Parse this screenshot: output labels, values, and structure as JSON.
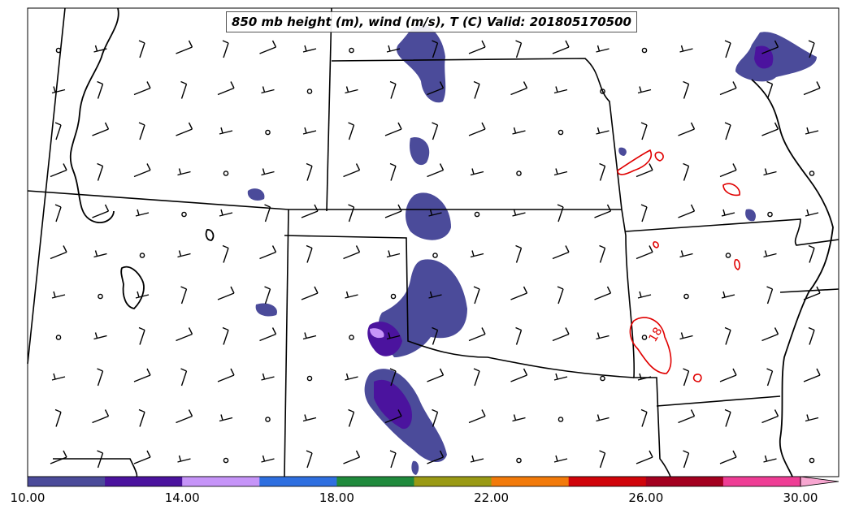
{
  "title": "850 mb height (m), wind (m/s), T (C) Valid: 201805170500",
  "contour_label": "18",
  "colorbar": {
    "colors": [
      "#4b4b9a",
      "#4b139e",
      "#c694f8",
      "#2e6fe0",
      "#1f8a3c",
      "#9a9a14",
      "#f27a0a",
      "#d0040a",
      "#a3001f",
      "#ee3d95",
      "#f7a6d0"
    ],
    "tick_values": [
      10,
      14,
      18,
      22,
      26,
      30
    ],
    "tick_labels": [
      "10.00",
      "14.00",
      "18.00",
      "22.00",
      "26.00",
      "30.00"
    ],
    "range": [
      10,
      30
    ]
  },
  "legend_colors": {
    "contour": "#e00000",
    "border": "#000000"
  }
}
